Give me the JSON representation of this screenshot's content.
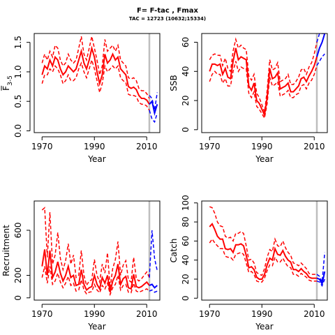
{
  "figure": {
    "title": "F= F-tac , Fmax",
    "subtitle": "TAC = 12723 (10632;15334)"
  },
  "colors": {
    "history": "#ff0000",
    "forecast": "#0000ff",
    "marker": "#bebebe",
    "axis": "#000000"
  },
  "chart_data": [
    {
      "type": "line",
      "panel": "top-left",
      "ylabel_main": "F",
      "ylabel_sub": "3-5",
      "xlabel": "Year",
      "xlim": [
        1967,
        2015
      ],
      "ylim": [
        -0.03,
        1.65
      ],
      "xticks": [
        1970,
        1990,
        2010
      ],
      "yticks": [
        0.0,
        0.5,
        1.0,
        1.5
      ],
      "vline": 2011,
      "grid": false,
      "history": {
        "x": [
          1970,
          1971,
          1972,
          1973,
          1974,
          1975,
          1976,
          1977,
          1978,
          1979,
          1980,
          1981,
          1982,
          1983,
          1984,
          1985,
          1986,
          1987,
          1988,
          1989,
          1990,
          1991,
          1992,
          1993,
          1994,
          1995,
          1996,
          1997,
          1998,
          1999,
          2000,
          2001,
          2002,
          2003,
          2004,
          2005,
          2006,
          2007,
          2008,
          2009,
          2010,
          2011
        ],
        "median": [
          0.95,
          1.1,
          1.05,
          1.2,
          1.1,
          1.25,
          1.2,
          1.05,
          0.95,
          1.0,
          1.1,
          1.05,
          1.0,
          1.05,
          1.2,
          1.35,
          1.15,
          1.05,
          1.2,
          1.4,
          1.25,
          1.0,
          0.8,
          0.95,
          1.3,
          1.15,
          1.2,
          1.3,
          1.2,
          1.25,
          1.05,
          1.0,
          0.95,
          0.75,
          0.72,
          0.74,
          0.7,
          0.6,
          0.55,
          0.55,
          0.52,
          0.45
        ],
        "lower": [
          0.8,
          0.95,
          0.95,
          1.05,
          1.0,
          1.1,
          1.05,
          0.95,
          0.8,
          0.85,
          0.95,
          0.85,
          0.85,
          0.9,
          1.05,
          1.15,
          1.0,
          0.9,
          1.05,
          1.2,
          1.05,
          0.85,
          0.65,
          0.8,
          1.1,
          1.0,
          1.05,
          1.1,
          1.05,
          1.1,
          0.9,
          0.85,
          0.82,
          0.62,
          0.6,
          0.6,
          0.58,
          0.48,
          0.45,
          0.45,
          0.42,
          0.35
        ],
        "upper": [
          1.15,
          1.3,
          1.2,
          1.35,
          1.25,
          1.45,
          1.4,
          1.2,
          1.1,
          1.15,
          1.3,
          1.2,
          1.15,
          1.2,
          1.4,
          1.6,
          1.3,
          1.2,
          1.4,
          1.6,
          1.4,
          1.2,
          0.95,
          1.1,
          1.55,
          1.35,
          1.4,
          1.45,
          1.35,
          1.45,
          1.2,
          1.15,
          1.1,
          0.9,
          0.88,
          0.9,
          0.85,
          0.72,
          0.68,
          0.68,
          0.63,
          0.55
        ]
      },
      "forecast": {
        "x": [
          2011,
          2012,
          2013,
          2014
        ],
        "median": [
          0.45,
          0.5,
          0.3,
          0.45
        ],
        "lower": [
          0.35,
          0.2,
          0.15,
          0.3
        ],
        "upper": [
          0.6,
          0.55,
          0.35,
          0.65
        ]
      }
    },
    {
      "type": "line",
      "panel": "top-right",
      "ylabel_main": "SSB",
      "xlabel": "Year",
      "xlim": [
        1967,
        2015
      ],
      "ylim": [
        -2,
        66
      ],
      "xticks": [
        1970,
        1990,
        2010
      ],
      "yticks": [
        0,
        20,
        40,
        60
      ],
      "vline": 2011,
      "grid": false,
      "history": {
        "x": [
          1970,
          1971,
          1972,
          1973,
          1974,
          1975,
          1976,
          1977,
          1978,
          1979,
          1980,
          1981,
          1982,
          1983,
          1984,
          1985,
          1986,
          1987,
          1988,
          1989,
          1990,
          1991,
          1992,
          1993,
          1994,
          1995,
          1996,
          1997,
          1998,
          1999,
          2000,
          2001,
          2002,
          2003,
          2004,
          2005,
          2006,
          2007,
          2008,
          2009,
          2010,
          2011
        ],
        "median": [
          40,
          45,
          45,
          44,
          45,
          38,
          42,
          36,
          35,
          47,
          56,
          48,
          50,
          49,
          48,
          30,
          27,
          32,
          20,
          18,
          14,
          10,
          22,
          42,
          35,
          36,
          39,
          28,
          29,
          30,
          32,
          26,
          26,
          28,
          30,
          35,
          36,
          33,
          37,
          40,
          44,
          50
        ],
        "lower": [
          33,
          38,
          40,
          38,
          38,
          32,
          35,
          30,
          30,
          40,
          47,
          40,
          43,
          42,
          42,
          25,
          22,
          26,
          16,
          14,
          11,
          8,
          18,
          36,
          30,
          31,
          33,
          23,
          24,
          25,
          27,
          22,
          22,
          24,
          25,
          30,
          31,
          28,
          32,
          34,
          38,
          44
        ],
        "upper": [
          48,
          51,
          52,
          51,
          51,
          44,
          49,
          42,
          40,
          54,
          62,
          56,
          58,
          56,
          55,
          37,
          34,
          38,
          25,
          22,
          17,
          12,
          27,
          48,
          41,
          42,
          46,
          33,
          34,
          35,
          38,
          31,
          31,
          33,
          36,
          41,
          42,
          38,
          43,
          46,
          52,
          60
        ]
      },
      "forecast": {
        "x": [
          2011,
          2012,
          2013,
          2014
        ],
        "median": [
          50,
          56,
          60,
          66
        ],
        "lower": [
          44,
          47,
          50,
          52
        ],
        "upper": [
          60,
          66,
          66,
          66
        ]
      }
    },
    {
      "type": "line",
      "panel": "bottom-left",
      "ylabel_main": "Recruitment",
      "xlabel": "Year",
      "xlim": [
        1967,
        2015
      ],
      "ylim": [
        -20,
        860
      ],
      "xticks": [
        1970,
        1990,
        2010
      ],
      "yticks": [
        0,
        200,
        600
      ],
      "vline": 2011,
      "grid": false,
      "history": {
        "x": [
          1970,
          1971,
          1972,
          1973,
          1974,
          1975,
          1976,
          1977,
          1978,
          1979,
          1980,
          1981,
          1982,
          1983,
          1984,
          1985,
          1986,
          1987,
          1988,
          1989,
          1990,
          1991,
          1992,
          1993,
          1994,
          1995,
          1996,
          1997,
          1998,
          1999,
          2000,
          2001,
          2002,
          2003,
          2004,
          2005,
          2006,
          2007,
          2008,
          2009,
          2010,
          2011
        ],
        "median": [
          280,
          430,
          200,
          420,
          180,
          230,
          320,
          220,
          150,
          200,
          280,
          180,
          200,
          110,
          120,
          250,
          120,
          70,
          90,
          100,
          200,
          120,
          80,
          180,
          130,
          200,
          50,
          150,
          200,
          300,
          120,
          170,
          190,
          90,
          80,
          210,
          100,
          90,
          100,
          120,
          140,
          110
        ],
        "lower": [
          180,
          280,
          130,
          280,
          120,
          150,
          220,
          140,
          90,
          130,
          190,
          110,
          130,
          60,
          70,
          160,
          70,
          35,
          50,
          55,
          120,
          70,
          45,
          110,
          80,
          130,
          30,
          90,
          120,
          200,
          70,
          110,
          120,
          50,
          45,
          130,
          60,
          50,
          60,
          70,
          80,
          60
        ],
        "upper": [
          780,
          800,
          360,
          760,
          300,
          380,
          580,
          350,
          250,
          330,
          480,
          300,
          380,
          180,
          200,
          420,
          200,
          110,
          150,
          160,
          340,
          200,
          140,
          300,
          220,
          400,
          90,
          260,
          340,
          500,
          200,
          290,
          330,
          160,
          140,
          360,
          170,
          150,
          170,
          200,
          230,
          180
        ]
      },
      "forecast": {
        "x": [
          2011,
          2012,
          2013,
          2014
        ],
        "median": [
          110,
          120,
          90,
          110
        ],
        "lower": [
          60,
          70,
          50,
          60
        ],
        "upper": [
          180,
          600,
          350,
          240
        ]
      }
    },
    {
      "type": "line",
      "panel": "bottom-right",
      "ylabel_main": "Catch",
      "xlabel": "Year",
      "xlim": [
        1967,
        2015
      ],
      "ylim": [
        -2,
        102
      ],
      "xticks": [
        1970,
        1990,
        2010
      ],
      "yticks": [
        0,
        20,
        40,
        60,
        80,
        100
      ],
      "vline": 2011,
      "grid": false,
      "history": {
        "x": [
          1970,
          1971,
          1972,
          1973,
          1974,
          1975,
          1976,
          1977,
          1978,
          1979,
          1980,
          1981,
          1982,
          1983,
          1984,
          1985,
          1986,
          1987,
          1988,
          1989,
          1990,
          1991,
          1992,
          1993,
          1994,
          1995,
          1996,
          1997,
          1998,
          1999,
          2000,
          2001,
          2002,
          2003,
          2004,
          2005,
          2006,
          2007,
          2008,
          2009,
          2010,
          2011
        ],
        "median": [
          75,
          78,
          72,
          65,
          62,
          62,
          52,
          51,
          52,
          48,
          56,
          56,
          57,
          55,
          45,
          32,
          33,
          30,
          22,
          20,
          20,
          25,
          35,
          42,
          40,
          52,
          46,
          45,
          50,
          44,
          40,
          38,
          30,
          30,
          28,
          31,
          28,
          26,
          22,
          21,
          21,
          21
        ],
        "lower": [
          58,
          62,
          58,
          55,
          52,
          52,
          44,
          43,
          43,
          40,
          46,
          47,
          48,
          46,
          37,
          27,
          28,
          25,
          18,
          17,
          17,
          21,
          29,
          35,
          34,
          43,
          38,
          38,
          42,
          37,
          33,
          32,
          25,
          25,
          23,
          26,
          24,
          22,
          19,
          18,
          18,
          18
        ],
        "upper": [
          96,
          95,
          89,
          80,
          76,
          75,
          65,
          63,
          64,
          60,
          68,
          68,
          70,
          68,
          55,
          40,
          41,
          37,
          27,
          25,
          24,
          31,
          43,
          51,
          49,
          62,
          55,
          54,
          60,
          53,
          48,
          45,
          37,
          36,
          34,
          37,
          34,
          31,
          26,
          25,
          25,
          25
        ]
      },
      "forecast": {
        "x": [
          2011,
          2012,
          2013,
          2014
        ],
        "median": [
          21,
          20,
          15,
          28
        ],
        "lower": [
          18,
          17,
          13,
          20
        ],
        "upper": [
          25,
          23,
          17,
          48
        ]
      }
    }
  ]
}
